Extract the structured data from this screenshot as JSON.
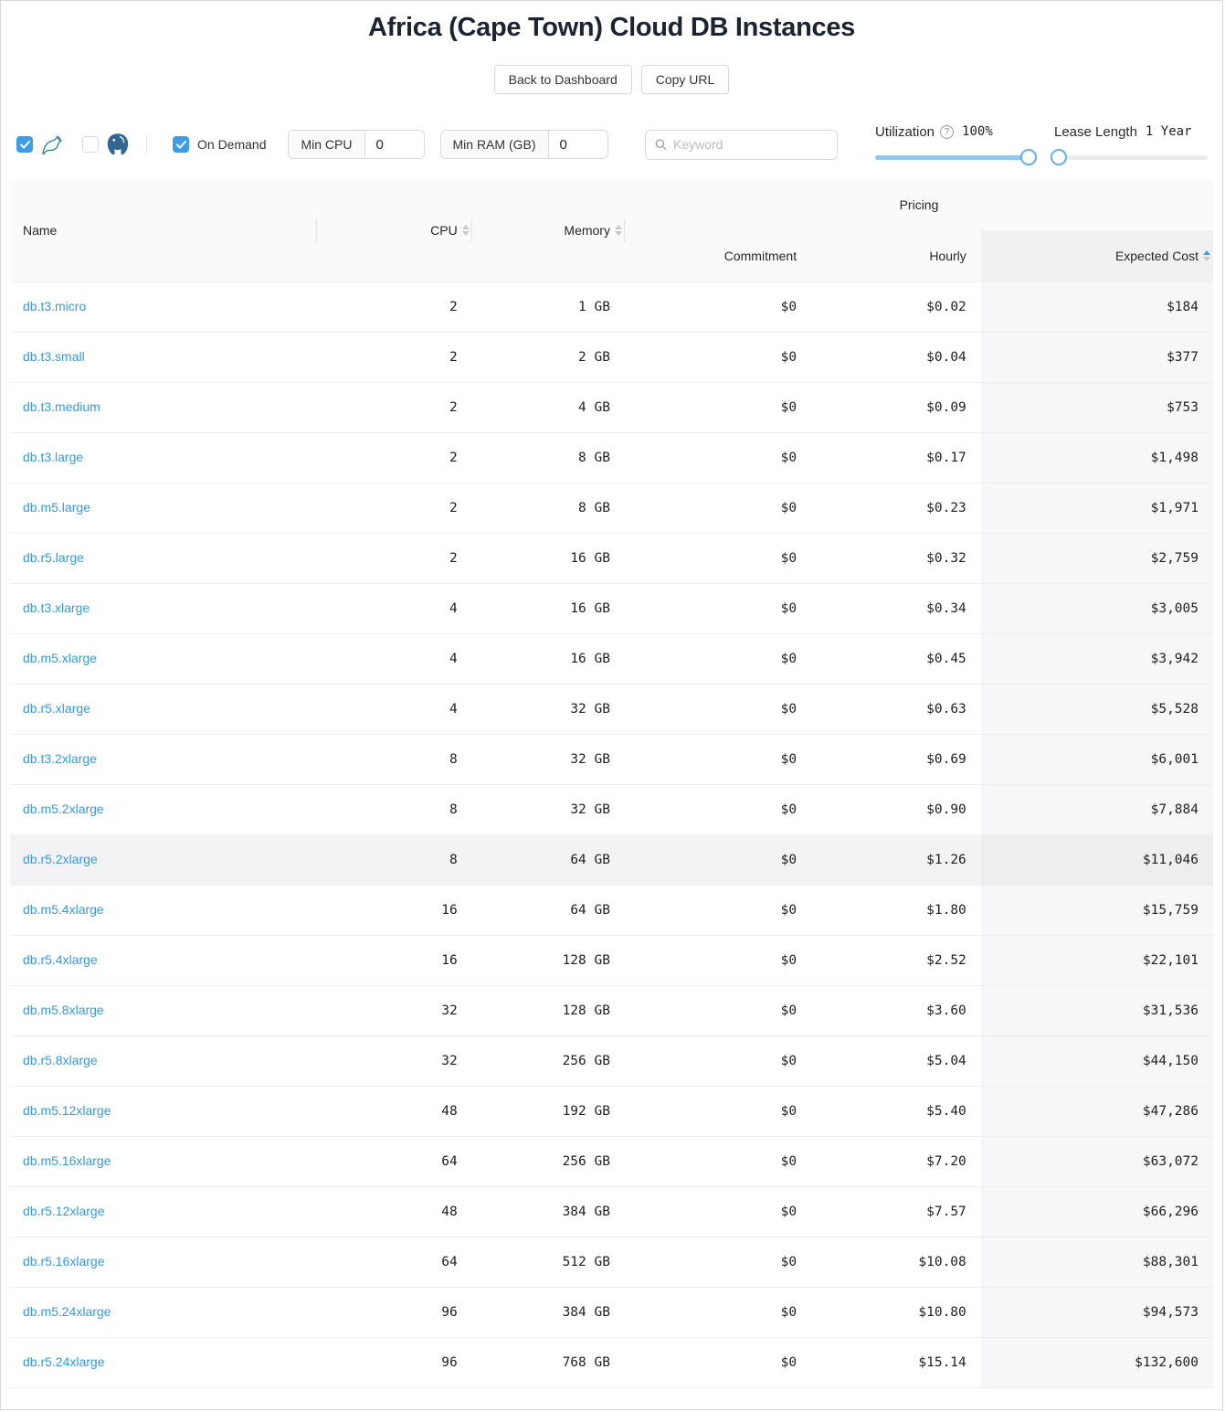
{
  "page": {
    "title": "Africa (Cape Town) Cloud DB Instances"
  },
  "toolbar": {
    "back_label": "Back to Dashboard",
    "copy_url_label": "Copy URL"
  },
  "filters": {
    "mysql": {
      "checked": true,
      "icon": "mysql-dolphin-icon"
    },
    "postgres": {
      "checked": false,
      "icon": "postgres-elephant-icon"
    },
    "on_demand": {
      "label": "On Demand",
      "checked": true
    },
    "min_cpu": {
      "label": "Min CPU",
      "value": "0"
    },
    "min_ram": {
      "label": "Min RAM (GB)",
      "value": "0"
    },
    "keyword": {
      "placeholder": "Keyword"
    },
    "utilization": {
      "label": "Utilization",
      "value": "100%",
      "percent": 100
    },
    "lease": {
      "label": "Lease Length",
      "value": "1 Year",
      "percent": 3
    }
  },
  "table": {
    "pricing_group_label": "Pricing",
    "columns": {
      "name": "Name",
      "cpu": "CPU",
      "memory": "Memory",
      "commitment": "Commitment",
      "hourly": "Hourly",
      "expected": "Expected Cost"
    },
    "sorted_column": "expected",
    "sort_direction": "ascending",
    "rows": [
      {
        "name": "db.t3.micro",
        "cpu": "2",
        "memory": "1 GB",
        "commitment": "$0",
        "hourly": "$0.02",
        "expected": "$184",
        "hovered": false
      },
      {
        "name": "db.t3.small",
        "cpu": "2",
        "memory": "2 GB",
        "commitment": "$0",
        "hourly": "$0.04",
        "expected": "$377",
        "hovered": false
      },
      {
        "name": "db.t3.medium",
        "cpu": "2",
        "memory": "4 GB",
        "commitment": "$0",
        "hourly": "$0.09",
        "expected": "$753",
        "hovered": false
      },
      {
        "name": "db.t3.large",
        "cpu": "2",
        "memory": "8 GB",
        "commitment": "$0",
        "hourly": "$0.17",
        "expected": "$1,498",
        "hovered": false
      },
      {
        "name": "db.m5.large",
        "cpu": "2",
        "memory": "8 GB",
        "commitment": "$0",
        "hourly": "$0.23",
        "expected": "$1,971",
        "hovered": false
      },
      {
        "name": "db.r5.large",
        "cpu": "2",
        "memory": "16 GB",
        "commitment": "$0",
        "hourly": "$0.32",
        "expected": "$2,759",
        "hovered": false
      },
      {
        "name": "db.t3.xlarge",
        "cpu": "4",
        "memory": "16 GB",
        "commitment": "$0",
        "hourly": "$0.34",
        "expected": "$3,005",
        "hovered": false
      },
      {
        "name": "db.m5.xlarge",
        "cpu": "4",
        "memory": "16 GB",
        "commitment": "$0",
        "hourly": "$0.45",
        "expected": "$3,942",
        "hovered": false
      },
      {
        "name": "db.r5.xlarge",
        "cpu": "4",
        "memory": "32 GB",
        "commitment": "$0",
        "hourly": "$0.63",
        "expected": "$5,528",
        "hovered": false
      },
      {
        "name": "db.t3.2xlarge",
        "cpu": "8",
        "memory": "32 GB",
        "commitment": "$0",
        "hourly": "$0.69",
        "expected": "$6,001",
        "hovered": false
      },
      {
        "name": "db.m5.2xlarge",
        "cpu": "8",
        "memory": "32 GB",
        "commitment": "$0",
        "hourly": "$0.90",
        "expected": "$7,884",
        "hovered": false
      },
      {
        "name": "db.r5.2xlarge",
        "cpu": "8",
        "memory": "64 GB",
        "commitment": "$0",
        "hourly": "$1.26",
        "expected": "$11,046",
        "hovered": true
      },
      {
        "name": "db.m5.4xlarge",
        "cpu": "16",
        "memory": "64 GB",
        "commitment": "$0",
        "hourly": "$1.80",
        "expected": "$15,759",
        "hovered": false
      },
      {
        "name": "db.r5.4xlarge",
        "cpu": "16",
        "memory": "128 GB",
        "commitment": "$0",
        "hourly": "$2.52",
        "expected": "$22,101",
        "hovered": false
      },
      {
        "name": "db.m5.8xlarge",
        "cpu": "32",
        "memory": "128 GB",
        "commitment": "$0",
        "hourly": "$3.60",
        "expected": "$31,536",
        "hovered": false
      },
      {
        "name": "db.r5.8xlarge",
        "cpu": "32",
        "memory": "256 GB",
        "commitment": "$0",
        "hourly": "$5.04",
        "expected": "$44,150",
        "hovered": false
      },
      {
        "name": "db.m5.12xlarge",
        "cpu": "48",
        "memory": "192 GB",
        "commitment": "$0",
        "hourly": "$5.40",
        "expected": "$47,286",
        "hovered": false
      },
      {
        "name": "db.m5.16xlarge",
        "cpu": "64",
        "memory": "256 GB",
        "commitment": "$0",
        "hourly": "$7.20",
        "expected": "$63,072",
        "hovered": false
      },
      {
        "name": "db.r5.12xlarge",
        "cpu": "48",
        "memory": "384 GB",
        "commitment": "$0",
        "hourly": "$7.57",
        "expected": "$66,296",
        "hovered": false
      },
      {
        "name": "db.r5.16xlarge",
        "cpu": "64",
        "memory": "512 GB",
        "commitment": "$0",
        "hourly": "$10.08",
        "expected": "$88,301",
        "hovered": false
      },
      {
        "name": "db.m5.24xlarge",
        "cpu": "96",
        "memory": "384 GB",
        "commitment": "$0",
        "hourly": "$10.80",
        "expected": "$94,573",
        "hovered": false
      },
      {
        "name": "db.r5.24xlarge",
        "cpu": "96",
        "memory": "768 GB",
        "commitment": "$0",
        "hourly": "$15.14",
        "expected": "$132,600",
        "hovered": false
      }
    ]
  },
  "colors": {
    "accent": "#3d9ce6",
    "link": "#3999d6",
    "slider_fill": "#8fc9f0",
    "slider_handle": "#66aee6"
  }
}
